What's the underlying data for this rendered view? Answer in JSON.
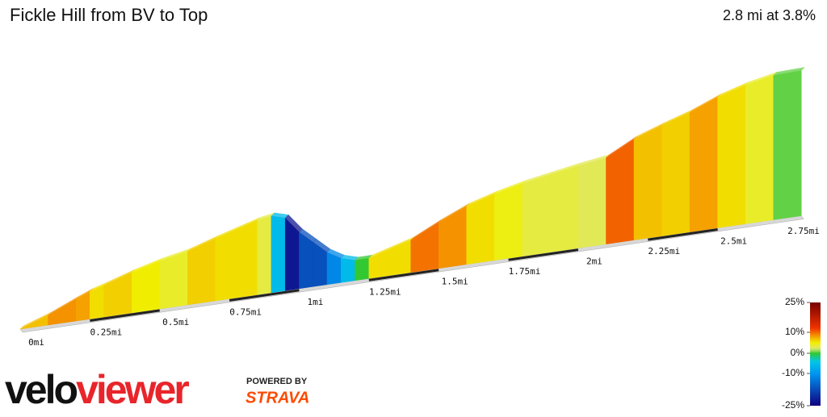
{
  "header": {
    "title": "Fickle Hill from BV to Top",
    "summary": "2.8 mi at 3.8%"
  },
  "profile": {
    "distance": [
      0,
      0.1,
      0.2,
      0.25,
      0.3,
      0.4,
      0.5,
      0.6,
      0.7,
      0.8,
      0.85,
      0.9,
      0.95,
      1.0,
      1.05,
      1.1,
      1.15,
      1.2,
      1.25,
      1.3,
      1.4,
      1.5,
      1.6,
      1.7,
      1.75,
      1.8,
      1.9,
      2.0,
      2.1,
      2.2,
      2.25,
      2.3,
      2.4,
      2.5,
      2.6,
      2.7,
      2.8
    ],
    "elevation": [
      0,
      36,
      81,
      102,
      117,
      150,
      177,
      198,
      231,
      261,
      276,
      285,
      270,
      210,
      165,
      120,
      90,
      75,
      75,
      90,
      120,
      171,
      216,
      246,
      258,
      270,
      288,
      306,
      321,
      375,
      393,
      411,
      444,
      486,
      516,
      537,
      540
    ],
    "xticks": [
      {
        "value": 0,
        "label": "0mi"
      },
      {
        "value": 0.25,
        "label": "0.25mi"
      },
      {
        "value": 0.5,
        "label": "0.5mi"
      },
      {
        "value": 0.75,
        "label": "0.75mi"
      },
      {
        "value": 1,
        "label": "1mi"
      },
      {
        "value": 1.25,
        "label": "1.25mi"
      },
      {
        "value": 1.5,
        "label": "1.5mi"
      },
      {
        "value": 1.75,
        "label": "1.75mi"
      },
      {
        "value": 2,
        "label": "2mi"
      },
      {
        "value": 2.25,
        "label": "2.25mi"
      },
      {
        "value": 2.5,
        "label": "2.5mi"
      },
      {
        "value": 2.75,
        "label": "2.75mi"
      }
    ]
  },
  "legend": {
    "ticks": [
      {
        "value": 25,
        "label": "25%"
      },
      {
        "value": 10,
        "label": "10%"
      },
      {
        "value": 0,
        "label": "0%"
      },
      {
        "value": -10,
        "label": "-10%"
      },
      {
        "value": -25,
        "label": "-25%"
      }
    ]
  },
  "logo": {
    "velo": "velo",
    "viewer": "viewer",
    "powered": "POWERED BY",
    "strava": "STRAVA"
  }
}
